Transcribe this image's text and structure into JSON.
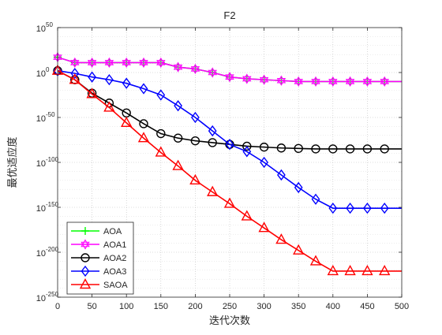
{
  "chart_data": {
    "type": "line",
    "title": "F2",
    "xlabel": "迭代次数",
    "ylabel": "最优适应度",
    "xlim": [
      0,
      500
    ],
    "ylim": [
      -250,
      50
    ],
    "yscale": "log10",
    "x_ticks": [
      "0",
      "50",
      "100",
      "150",
      "200",
      "250",
      "300",
      "350",
      "400",
      "450",
      "500"
    ],
    "y_tick_bases": [
      "10",
      "10",
      "10",
      "10",
      "10",
      "10",
      "10"
    ],
    "y_tick_exponents": [
      "50",
      "0",
      "-50",
      "-100",
      "-150",
      "-200",
      "-250"
    ],
    "grid": true,
    "legend_position": "bottom-left",
    "series": [
      {
        "name": "AOA",
        "color": "#00ff00",
        "marker": "plus",
        "x": [
          0,
          25,
          50,
          75,
          100,
          125,
          150,
          175,
          200,
          225,
          250,
          275,
          300,
          325,
          350,
          375,
          400,
          425,
          450,
          475,
          500
        ],
        "y": [
          17,
          11,
          11,
          11,
          11,
          11,
          11,
          6,
          4,
          0,
          -5,
          -7,
          -8,
          -9,
          -10,
          -10,
          -10,
          -10,
          -10,
          -10,
          -10
        ]
      },
      {
        "name": "AOA1",
        "color": "#ff00ff",
        "marker": "hexagram",
        "x": [
          0,
          25,
          50,
          75,
          100,
          125,
          150,
          175,
          200,
          225,
          250,
          275,
          300,
          325,
          350,
          375,
          400,
          425,
          450,
          475,
          500
        ],
        "y": [
          17,
          11,
          11,
          11,
          11,
          11,
          11,
          6,
          4,
          0,
          -5,
          -7,
          -8,
          -9,
          -10,
          -10,
          -10,
          -10,
          -10,
          -10,
          -10
        ]
      },
      {
        "name": "AOA2",
        "color": "#000000",
        "marker": "circle",
        "x": [
          0,
          25,
          50,
          75,
          100,
          125,
          150,
          175,
          200,
          225,
          250,
          275,
          300,
          325,
          350,
          375,
          400,
          425,
          450,
          475,
          500
        ],
        "y": [
          2,
          -8,
          -23,
          -34,
          -45,
          -57,
          -68,
          -73,
          -76,
          -78,
          -80,
          -82,
          -83,
          -84,
          -84.5,
          -85,
          -85,
          -85,
          -85,
          -85,
          -85
        ]
      },
      {
        "name": "AOA3",
        "color": "#0000ff",
        "marker": "diamond",
        "x": [
          0,
          25,
          50,
          75,
          100,
          125,
          150,
          175,
          200,
          225,
          250,
          275,
          300,
          325,
          350,
          375,
          400,
          425,
          450,
          475,
          500
        ],
        "y": [
          2,
          -1,
          -5,
          -8,
          -12,
          -18,
          -25,
          -37,
          -50,
          -65,
          -80,
          -88,
          -100,
          -114,
          -128,
          -141,
          -151,
          -151,
          -151,
          -151,
          -151
        ]
      },
      {
        "name": "SAOA",
        "color": "#ff0000",
        "marker": "triangle",
        "x": [
          0,
          25,
          50,
          75,
          100,
          125,
          150,
          175,
          200,
          225,
          250,
          275,
          300,
          325,
          350,
          375,
          400,
          425,
          450,
          475,
          500
        ],
        "y": [
          2,
          -8,
          -24,
          -39,
          -56,
          -73,
          -89,
          -104,
          -120,
          -133,
          -146,
          -160,
          -173,
          -186,
          -198,
          -210,
          -221,
          -221,
          -221,
          -221,
          -221
        ]
      }
    ]
  }
}
